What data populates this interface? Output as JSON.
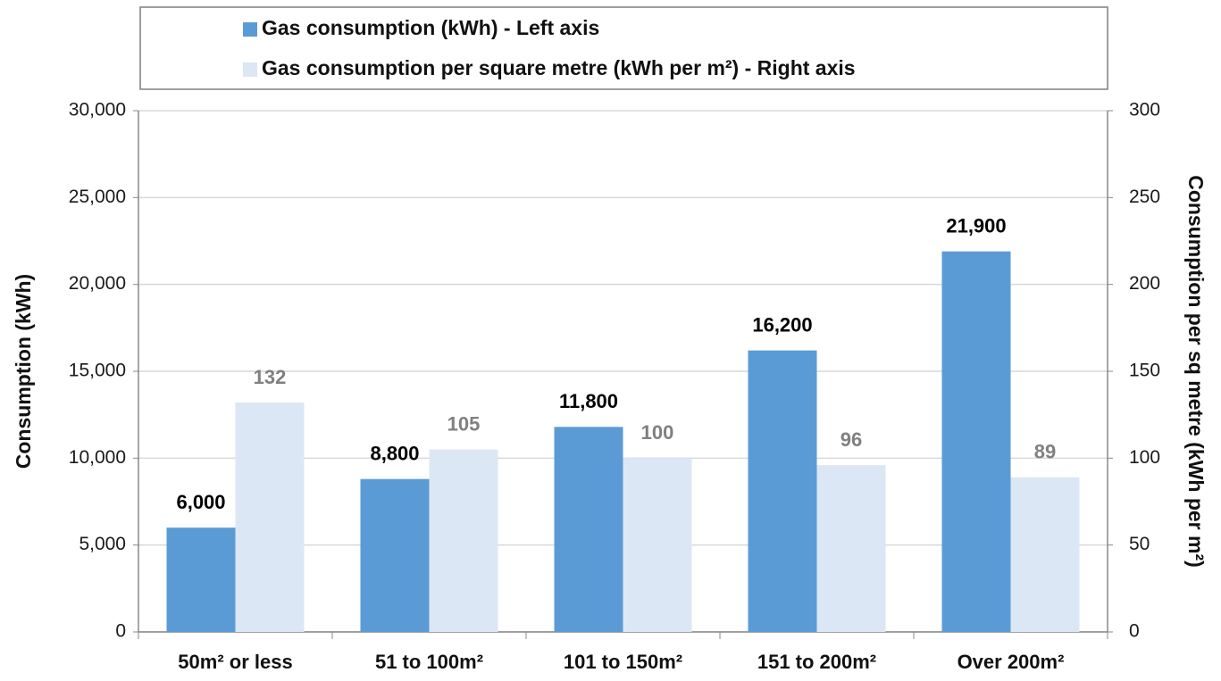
{
  "chart_data": {
    "type": "bar",
    "categories": [
      "50m² or less",
      "51 to 100m²",
      "101 to 150m²",
      "151 to 200m²",
      "Over 200m²"
    ],
    "series": [
      {
        "name": "Gas consumption (kWh) - Left axis",
        "color": "#5b9bd5",
        "values": [
          6000,
          8800,
          11800,
          16200,
          21900
        ],
        "value_labels": [
          "6,000",
          "8,800",
          "11,800",
          "16,200",
          "21,900"
        ]
      },
      {
        "name": "Gas consumption per square metre (kWh per m²) - Right axis",
        "color": "#dce7f5",
        "axis": "y2",
        "values": [
          132,
          105,
          100,
          96,
          89
        ]
      }
    ],
    "ylabel": "Consumption (kWh)",
    "y2label": "Consumption per sq metre (kWh per m²)",
    "ylim": [
      0,
      30000
    ],
    "yticks": [
      0,
      {
        "value": 5000,
        "label": "5,000"
      },
      {
        "value": 10000,
        "label": "10,000"
      },
      {
        "value": 15000,
        "label": "15,000"
      },
      {
        "value": 20000,
        "label": "20,000"
      },
      {
        "value": 25000,
        "label": "25,000"
      },
      {
        "value": 30000,
        "label": "30,000"
      }
    ],
    "y2lim": [
      0,
      300
    ],
    "y2ticks": [
      0,
      50,
      100,
      150,
      200,
      250,
      300
    ],
    "grid": true
  }
}
